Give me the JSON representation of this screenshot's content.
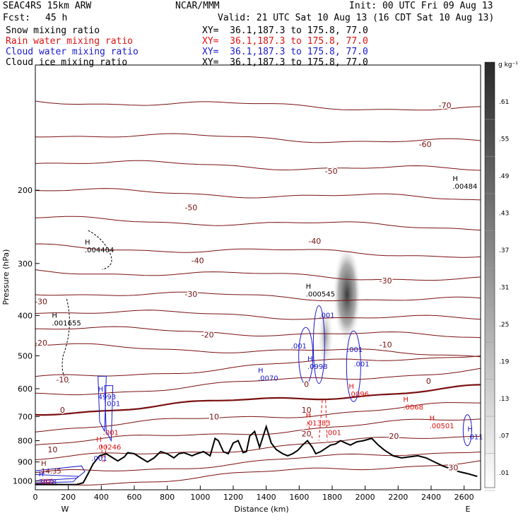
{
  "header": {
    "model": "SEAC4RS 15km ARW",
    "org": "NCAR/MMM",
    "init": "Init: 00 UTC Fri 09 Aug 13",
    "fcst_label": "Fcst:",
    "fcst_value": "45 h",
    "valid": "Valid: 21 UTC Sat 10 Aug 13 (16 CDT Sat 10 Aug 13)"
  },
  "legend": [
    {
      "name": "Snow mixing ratio",
      "xy": "XY=  36.1,187.3 to 175.8, 77.0",
      "color": "#000000"
    },
    {
      "name": "Rain water mixing ratio",
      "xy": "XY=  36.1,187.3 to 175.8, 77.0",
      "color": "#e01010"
    },
    {
      "name": "Cloud water mixing ratio",
      "xy": "XY=  36.1,187.3 to 175.8, 77.0",
      "color": "#1a1acc"
    },
    {
      "name": "Cloud ice mixing ratio",
      "xy": "XY=  36.1,187.3 to 175.8, 77.0",
      "color": "#000000"
    }
  ],
  "axes": {
    "ylabel": "Pressure (hPa)",
    "xlabel": "Distance (km)",
    "west": "W",
    "east": "E",
    "yticks": [
      "200",
      "300",
      "400",
      "500",
      "600",
      "700",
      "800",
      "900",
      "1000"
    ],
    "xticks": [
      "0",
      "200",
      "400",
      "600",
      "800",
      "1000",
      "1200",
      "1400",
      "1600",
      "1800",
      "2000",
      "2200",
      "2400",
      "2600"
    ]
  },
  "colorbar": {
    "unit": "g kg⁻¹",
    "labels": [
      ".61",
      ".55",
      ".49",
      ".43",
      ".37",
      ".31",
      ".25",
      ".19",
      ".13",
      ".07",
      ".01"
    ]
  },
  "chart_data": {
    "type": "cross-section",
    "xlim": [
      0,
      2700
    ],
    "ylim": [
      1050,
      100
    ],
    "y_scale": "log",
    "temperature_contours_C": {
      "color": "#7a1010",
      "labels": [
        {
          "v": "-70",
          "x": 2450,
          "p": 125
        },
        {
          "v": "-60",
          "x": 2330,
          "p": 155
        },
        {
          "v": "-50",
          "x": 1760,
          "p": 180
        },
        {
          "v": "-50",
          "x": 910,
          "p": 220
        },
        {
          "v": "-40",
          "x": 1660,
          "p": 265
        },
        {
          "v": "-40",
          "x": 950,
          "p": 295
        },
        {
          "v": "-30",
          "x": 2090,
          "p": 330
        },
        {
          "v": "-30",
          "x": 910,
          "p": 355
        },
        {
          "v": "-30",
          "x": 0,
          "p": 370
        },
        {
          "v": "-20",
          "x": 1010,
          "p": 445
        },
        {
          "v": "-20",
          "x": 0,
          "p": 465
        },
        {
          "v": "-10",
          "x": 2090,
          "p": 470
        },
        {
          "v": "-10",
          "x": 130,
          "p": 570
        },
        {
          "v": "0",
          "x": 2350,
          "p": 575
        },
        {
          "v": "0",
          "x": 1610,
          "p": 585
        },
        {
          "v": "0",
          "x": 130,
          "p": 675
        },
        {
          "v": "10",
          "x": 1610,
          "p": 675
        },
        {
          "v": "10",
          "x": 1050,
          "p": 700
        },
        {
          "v": "10",
          "x": 70,
          "p": 840
        },
        {
          "v": "20",
          "x": 1610,
          "p": 770
        },
        {
          "v": "20",
          "x": 2140,
          "p": 780
        },
        {
          "v": "30",
          "x": 2500,
          "p": 928
        }
      ]
    },
    "maxima_labels": [
      {
        "text": "H\n.00484",
        "x": 2530,
        "p": 190,
        "color": "#000000"
      },
      {
        "text": "H\n.004404",
        "x": 300,
        "p": 270,
        "color": "#000000"
      },
      {
        "text": "H\n.000545",
        "x": 1640,
        "p": 345,
        "color": "#000000"
      },
      {
        "text": "H\n.001655",
        "x": 100,
        "p": 405,
        "color": "#000000"
      },
      {
        "text": ".001",
        "x": 1720,
        "p": 405,
        "color": "#1a1acc"
      },
      {
        "text": ".001",
        "x": 1550,
        "p": 480,
        "color": "#1a1acc"
      },
      {
        "text": ".001",
        "x": 1890,
        "p": 490,
        "color": "#1a1acc"
      },
      {
        "text": "H\n.0998",
        "x": 1650,
        "p": 515,
        "color": "#1a1acc"
      },
      {
        "text": ".001",
        "x": 1930,
        "p": 530,
        "color": "#1a1acc"
      },
      {
        "text": "H\n.0070",
        "x": 1350,
        "p": 550,
        "color": "#1a1acc"
      },
      {
        "text": "H\n.0096",
        "x": 1900,
        "p": 600,
        "color": "#e01010"
      },
      {
        "text": "H\n4993",
        "x": 380,
        "p": 610,
        "color": "#1a1acc"
      },
      {
        "text": ".001",
        "x": 420,
        "p": 660,
        "color": "#1a1acc"
      },
      {
        "text": "H\n.0068",
        "x": 2230,
        "p": 645,
        "color": "#e01010"
      },
      {
        "text": "H\n.01383",
        "x": 1640,
        "p": 705,
        "color": "#e01010"
      },
      {
        "text": "H\n.00501",
        "x": 2390,
        "p": 715,
        "color": "#e01010"
      },
      {
        "text": ".001",
        "x": 410,
        "p": 775,
        "color": "#e01010"
      },
      {
        "text": ".001",
        "x": 1760,
        "p": 775,
        "color": "#e01010"
      },
      {
        "text": "H\n.011",
        "x": 2620,
        "p": 760,
        "color": "#1a1acc"
      },
      {
        "text": "H\n.00246",
        "x": 370,
        "p": 805,
        "color": "#e01010"
      },
      {
        "text": ".001",
        "x": 340,
        "p": 895,
        "color": "#1a1acc"
      },
      {
        "text": "H\n14.35",
        "x": 35,
        "p": 920,
        "color": "#7a1010"
      },
      {
        "text": "H\n3078",
        "x": 20,
        "p": 975,
        "color": "#1a1acc"
      },
      {
        "text": ".001",
        "x": 20,
        "p": 1015,
        "color": "#e01010"
      }
    ],
    "terrain_pressure": {
      "x": [
        0,
        250,
        290,
        320,
        350,
        390,
        430,
        470,
        500,
        540,
        560,
        600,
        640,
        680,
        720,
        760,
        800,
        840,
        870,
        900,
        950,
        980,
        1020,
        1060,
        1090,
        1110,
        1140,
        1170,
        1200,
        1230,
        1260,
        1280,
        1300,
        1330,
        1360,
        1400,
        1430,
        1460,
        1500,
        1530,
        1560,
        1590,
        1620,
        1650,
        1680,
        1700,
        1730,
        1760,
        1790,
        1820,
        1850,
        1880,
        1910,
        1950,
        1990,
        2040,
        2080,
        2120,
        2170,
        2220,
        2270,
        2320,
        2370,
        2420,
        2470,
        2520,
        2570,
        2620,
        2680
      ],
      "p": [
        1020,
        1020,
        1010,
        960,
        910,
        870,
        860,
        880,
        895,
        875,
        855,
        860,
        880,
        900,
        880,
        850,
        860,
        880,
        860,
        855,
        870,
        860,
        850,
        870,
        790,
        800,
        850,
        860,
        810,
        800,
        855,
        850,
        780,
        760,
        830,
        740,
        810,
        840,
        860,
        870,
        860,
        845,
        820,
        800,
        830,
        860,
        850,
        835,
        820,
        815,
        800,
        810,
        820,
        805,
        800,
        790,
        820,
        845,
        870,
        880,
        875,
        870,
        880,
        900,
        920,
        935,
        950,
        960,
        975
      ]
    },
    "snow_max": {
      "x": 1890,
      "p": [
        270,
        470
      ],
      "value": 0.61
    }
  }
}
